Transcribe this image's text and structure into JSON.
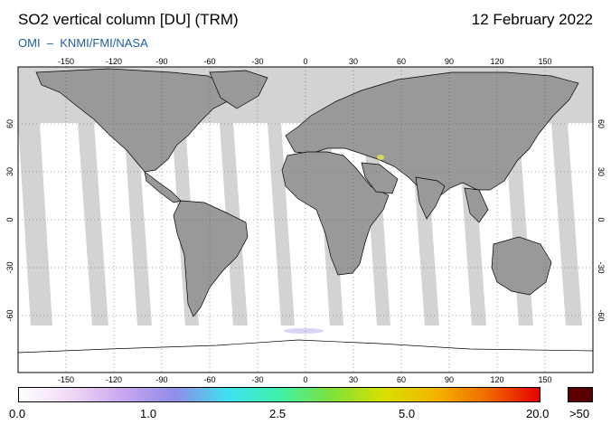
{
  "header": {
    "title": "SO2 vertical column [DU] (TRM)",
    "date": "12 February 2022",
    "credit_left": "OMI",
    "credit_sep": "–",
    "credit_right": "KNMI/FMI/NASA"
  },
  "map": {
    "lon_ticks": [
      "-150",
      "-120",
      "-90",
      "-60",
      "-30",
      "0",
      "30",
      "60",
      "90",
      "120",
      "150"
    ],
    "lat_ticks": [
      "60",
      "30",
      "0",
      "-30",
      "-60"
    ],
    "land_color": "#999999",
    "nodata_color": "#d3d3d3",
    "ocean_color": "#ffffff",
    "grid": true
  },
  "colorbar": {
    "labels": [
      "0.0",
      "1.0",
      "2.5",
      "5.0",
      "20.0"
    ],
    "overflow_label": ">50",
    "overflow_color": "#5a0000",
    "stops": [
      "#ffffff",
      "#f0d8f5",
      "#c9a6f0",
      "#8f8ce8",
      "#3fe0f0",
      "#3ef0a8",
      "#7ee23a",
      "#d8e000",
      "#f5b400",
      "#f06a00",
      "#e60000"
    ]
  }
}
